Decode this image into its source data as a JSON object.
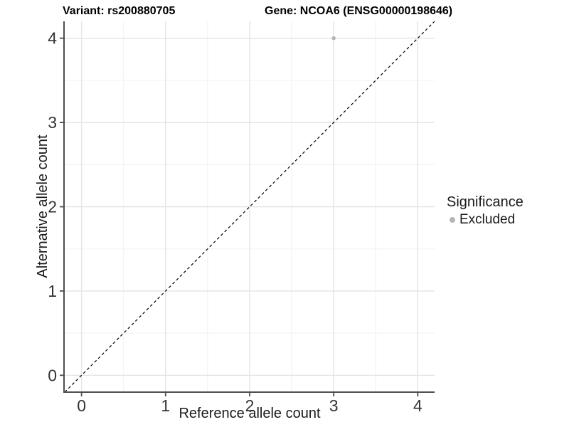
{
  "chart_data": {
    "type": "scatter",
    "title_left": "Variant: rs200880705",
    "title_right": "Gene: NCOA6 (ENSG00000198646)",
    "xlabel": "Reference allele count",
    "ylabel": "Alternative allele count",
    "xlim": [
      -0.2,
      4.2
    ],
    "ylim": [
      -0.2,
      4.2
    ],
    "xticks": [
      0,
      1,
      2,
      3,
      4
    ],
    "yticks": [
      0,
      1,
      2,
      3,
      4
    ],
    "xminor": [
      0.5,
      1.5,
      2.5,
      3.5
    ],
    "yminor": [
      0.5,
      1.5,
      2.5,
      3.5
    ],
    "grid": "major-and-minor",
    "series": [
      {
        "name": "Excluded",
        "color": "#b5b5b5",
        "points": [
          {
            "x": 3,
            "y": 4
          }
        ]
      }
    ],
    "reference_line": {
      "type": "identity",
      "style": "dashed",
      "from": [
        -0.2,
        -0.2
      ],
      "to": [
        4.2,
        4.2
      ],
      "color": "#000000"
    },
    "legend": {
      "title": "Significance",
      "position": "right",
      "entries": [
        {
          "label": "Excluded",
          "color": "#b5b5b5"
        }
      ]
    },
    "colors": {
      "background": "#ffffff",
      "grid_major": "#e4e4e4",
      "grid_minor": "#f0f0f0",
      "axis": "#4d4d4d",
      "tick_text": "#333333"
    }
  }
}
